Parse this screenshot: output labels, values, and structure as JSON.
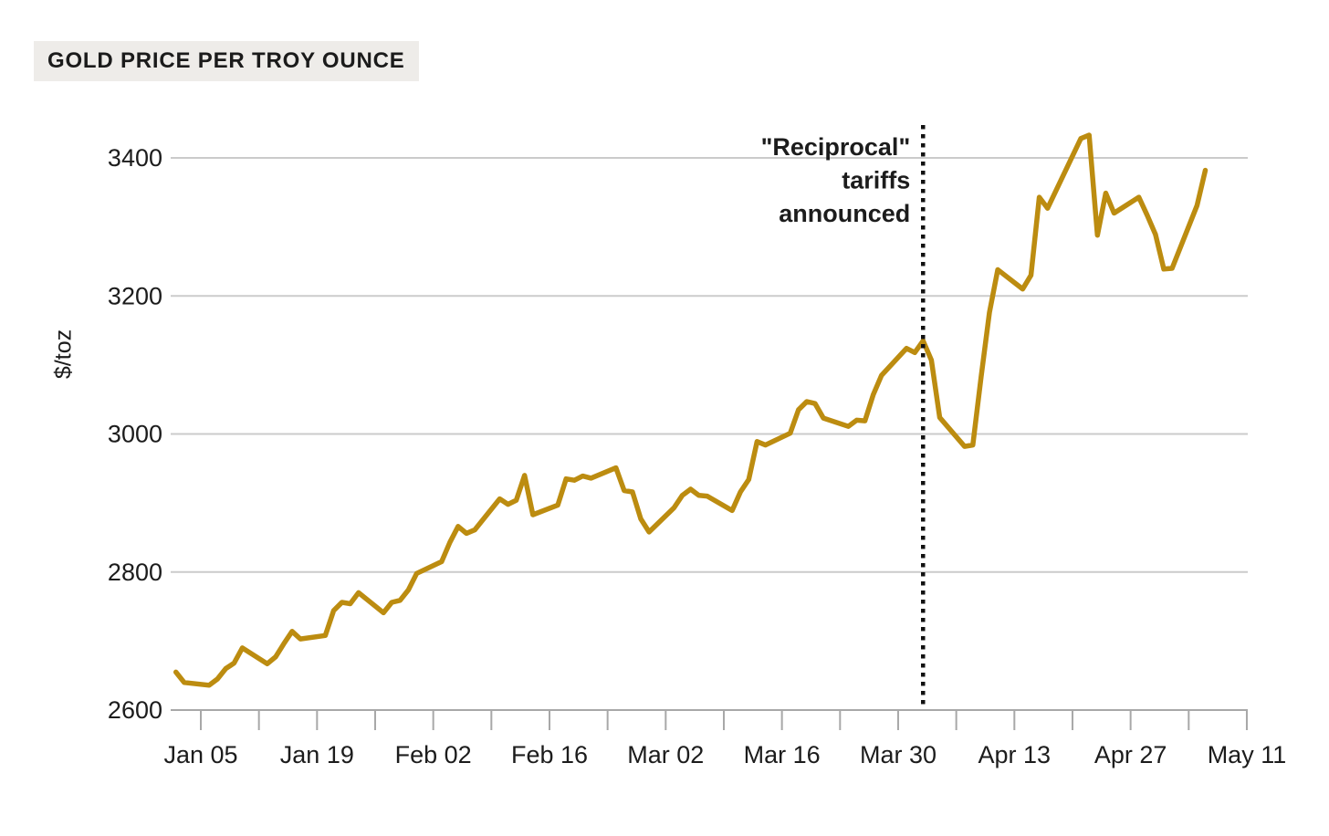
{
  "title": "GOLD PRICE PER TROY OUNCE",
  "colors": {
    "line": "#BC8C10",
    "grid": "#CBCBCB",
    "axis": "#A8A8A8",
    "text": "#1C1C1C",
    "annotation_line": "#111111",
    "title_bg": "#EEECE9"
  },
  "chart_data": {
    "type": "line",
    "title": "GOLD PRICE PER TROY OUNCE",
    "xlabel": "",
    "ylabel": "$/toz",
    "ylim": [
      2600,
      3450
    ],
    "yticks": [
      2600,
      2800,
      3000,
      3200,
      3400
    ],
    "xtick_labels": [
      "Jan 05",
      "Jan 19",
      "Feb 02",
      "Feb 16",
      "Mar 02",
      "Mar 16",
      "Mar 30",
      "Apr 13",
      "Apr 27",
      "May 11"
    ],
    "x_minor_tick_interval_days": 7,
    "grid": "horizontal-gridlines-on",
    "legend": "none",
    "annotation": {
      "label_lines": [
        "\"Reciprocal\"",
        "tariffs",
        "announced"
      ],
      "date": "Apr 02",
      "style": "vertical-dotted-line"
    },
    "series": [
      {
        "name": "Gold price ($/toz)",
        "points": [
          [
            "Jan 02",
            2655
          ],
          [
            "Jan 03",
            2640
          ],
          [
            "Jan 06",
            2636
          ],
          [
            "Jan 07",
            2645
          ],
          [
            "Jan 08",
            2660
          ],
          [
            "Jan 09",
            2668
          ],
          [
            "Jan 10",
            2690
          ],
          [
            "Jan 13",
            2667
          ],
          [
            "Jan 14",
            2677
          ],
          [
            "Jan 15",
            2696
          ],
          [
            "Jan 16",
            2714
          ],
          [
            "Jan 17",
            2703
          ],
          [
            "Jan 20",
            2708
          ],
          [
            "Jan 21",
            2744
          ],
          [
            "Jan 22",
            2756
          ],
          [
            "Jan 23",
            2754
          ],
          [
            "Jan 24",
            2770
          ],
          [
            "Jan 27",
            2741
          ],
          [
            "Jan 28",
            2756
          ],
          [
            "Jan 29",
            2759
          ],
          [
            "Jan 30",
            2774
          ],
          [
            "Jan 31",
            2798
          ],
          [
            "Feb 03",
            2815
          ],
          [
            "Feb 04",
            2843
          ],
          [
            "Feb 05",
            2866
          ],
          [
            "Feb 06",
            2856
          ],
          [
            "Feb 07",
            2861
          ],
          [
            "Feb 10",
            2906
          ],
          [
            "Feb 11",
            2898
          ],
          [
            "Feb 12",
            2904
          ],
          [
            "Feb 13",
            2940
          ],
          [
            "Feb 14",
            2883
          ],
          [
            "Feb 17",
            2897
          ],
          [
            "Feb 18",
            2935
          ],
          [
            "Feb 19",
            2933
          ],
          [
            "Feb 20",
            2939
          ],
          [
            "Feb 21",
            2936
          ],
          [
            "Feb 24",
            2951
          ],
          [
            "Feb 25",
            2918
          ],
          [
            "Feb 26",
            2916
          ],
          [
            "Feb 27",
            2877
          ],
          [
            "Feb 28",
            2858
          ],
          [
            "Mar 03",
            2893
          ],
          [
            "Mar 04",
            2911
          ],
          [
            "Mar 05",
            2920
          ],
          [
            "Mar 06",
            2911
          ],
          [
            "Mar 07",
            2910
          ],
          [
            "Mar 10",
            2889
          ],
          [
            "Mar 11",
            2916
          ],
          [
            "Mar 12",
            2934
          ],
          [
            "Mar 13",
            2989
          ],
          [
            "Mar 14",
            2984
          ],
          [
            "Mar 17",
            3001
          ],
          [
            "Mar 18",
            3035
          ],
          [
            "Mar 19",
            3047
          ],
          [
            "Mar 20",
            3044
          ],
          [
            "Mar 21",
            3023
          ],
          [
            "Mar 24",
            3011
          ],
          [
            "Mar 25",
            3020
          ],
          [
            "Mar 26",
            3019
          ],
          [
            "Mar 27",
            3057
          ],
          [
            "Mar 28",
            3085
          ],
          [
            "Mar 31",
            3124
          ],
          [
            "Apr 01",
            3118
          ],
          [
            "Apr 02",
            3135
          ],
          [
            "Apr 03",
            3107
          ],
          [
            "Apr 04",
            3024
          ],
          [
            "Apr 07",
            2982
          ],
          [
            "Apr 08",
            2984
          ],
          [
            "Apr 09",
            3083
          ],
          [
            "Apr 10",
            3176
          ],
          [
            "Apr 11",
            3238
          ],
          [
            "Apr 14",
            3210
          ],
          [
            "Apr 15",
            3230
          ],
          [
            "Apr 16",
            3343
          ],
          [
            "Apr 17",
            3327
          ],
          [
            "Apr 21",
            3428
          ],
          [
            "Apr 22",
            3433
          ],
          [
            "Apr 23",
            3288
          ],
          [
            "Apr 24",
            3349
          ],
          [
            "Apr 25",
            3320
          ],
          [
            "Apr 28",
            3343
          ],
          [
            "Apr 29",
            3317
          ],
          [
            "Apr 30",
            3289
          ],
          [
            "May 01",
            3239
          ],
          [
            "May 02",
            3240
          ],
          [
            "May 05",
            3331
          ],
          [
            "May 06",
            3382
          ]
        ]
      }
    ]
  }
}
